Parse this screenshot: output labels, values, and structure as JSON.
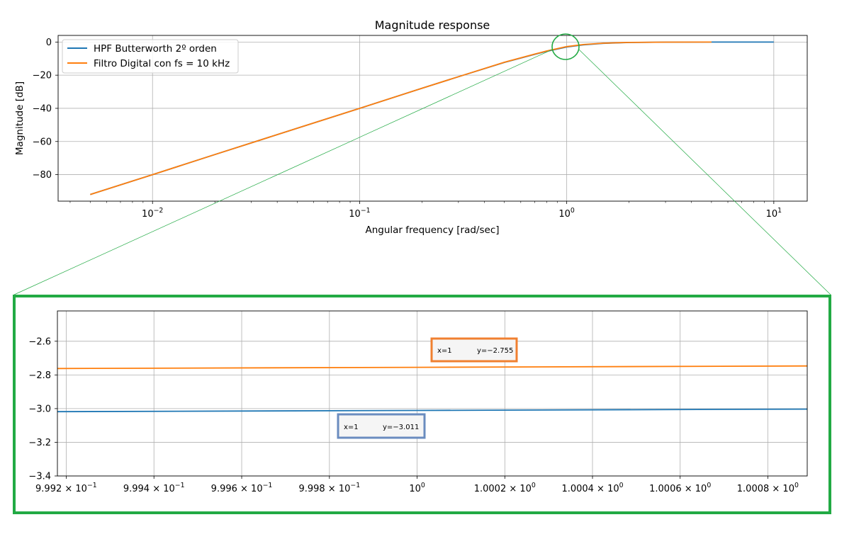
{
  "chart_data": [
    {
      "type": "line",
      "title": "Magnitude response",
      "xlabel": "Angular frequency [rad/sec]",
      "ylabel": "Magnitude [dB]",
      "xscale": "log",
      "xlim": [
        0.0035,
        14.5
      ],
      "ylim": [
        -96,
        4
      ],
      "grid": true,
      "legend_position": "upper-left",
      "yticks": [
        0,
        -20,
        -40,
        -60,
        -80
      ],
      "ytick_labels": [
        "0",
        "−20",
        "−40",
        "−60",
        "−80"
      ],
      "xticks": [
        0.01,
        0.1,
        1,
        10
      ],
      "xtick_labels": [
        {
          "base": "10",
          "exp": "−2"
        },
        {
          "base": "10",
          "exp": "−1"
        },
        {
          "base": "10",
          "exp": "0"
        },
        {
          "base": "10",
          "exp": "1"
        }
      ],
      "series": [
        {
          "name": "HPF Butterworth 2º orden",
          "color": "#1f77b4",
          "x": [
            0.005,
            0.01,
            0.02,
            0.05,
            0.1,
            0.2,
            0.3,
            0.5,
            0.7,
            0.8,
            1.0,
            1.2,
            1.5,
            2.0,
            3.0,
            5.0,
            10.0
          ],
          "y": [
            -92.0,
            -80.0,
            -67.9,
            -52.0,
            -40.0,
            -27.9,
            -20.9,
            -12.3,
            -7.4,
            -5.6,
            -3.01,
            -1.7,
            -0.8,
            -0.26,
            -0.05,
            -0.01,
            0.0
          ]
        },
        {
          "name": "Filtro Digital con fs = 10 kHz",
          "color": "#ff7f0e",
          "x": [
            0.005,
            0.01,
            0.02,
            0.05,
            0.1,
            0.2,
            0.3,
            0.5,
            0.7,
            0.8,
            1.0,
            1.2,
            1.5,
            2.0,
            3.0,
            5.0
          ],
          "y": [
            -92.0,
            -80.0,
            -67.9,
            -52.0,
            -40.0,
            -27.9,
            -20.9,
            -12.2,
            -7.3,
            -5.4,
            -2.76,
            -1.5,
            -0.7,
            -0.22,
            -0.04,
            -0.01
          ]
        }
      ]
    },
    {
      "type": "line",
      "title": "",
      "xlabel": "",
      "ylabel": "",
      "xscale": "log",
      "xlim": [
        0.99918,
        1.00089
      ],
      "ylim": [
        -3.4,
        -2.42
      ],
      "grid": true,
      "yticks": [
        -2.6,
        -2.8,
        -3.0,
        -3.2,
        -3.4
      ],
      "ytick_labels": [
        "−2.6",
        "−2.8",
        "−3.0",
        "−3.2",
        "−3.4"
      ],
      "xticks": [
        0.9992,
        0.9994,
        0.9996,
        0.9998,
        1.0,
        1.0002,
        1.0004,
        1.0006,
        1.0008
      ],
      "xtick_labels": [
        {
          "base": "9.992 × 10",
          "exp": "−1"
        },
        {
          "base": "9.994 × 10",
          "exp": "−1"
        },
        {
          "base": "9.996 × 10",
          "exp": "−1"
        },
        {
          "base": "9.998 × 10",
          "exp": "−1"
        },
        {
          "base": "10",
          "exp": "0"
        },
        {
          "base": "1.0002 × 10",
          "exp": "0"
        },
        {
          "base": "1.0004 × 10",
          "exp": "0"
        },
        {
          "base": "1.0006 × 10",
          "exp": "0"
        },
        {
          "base": "1.0008 × 10",
          "exp": "0"
        }
      ],
      "series": [
        {
          "name": "HPF Butterworth 2º orden",
          "color": "#1f77b4",
          "x": [
            0.99918,
            1.0,
            1.00089
          ],
          "y": [
            -3.018,
            -3.011,
            -3.003
          ]
        },
        {
          "name": "Filtro Digital con fs = 10 kHz",
          "color": "#ff7f0e",
          "x": [
            0.99918,
            1.0,
            1.00089
          ],
          "y": [
            -2.762,
            -2.755,
            -2.747
          ]
        }
      ],
      "annotations": [
        {
          "x_label": "x=1",
          "y_label": "y=−2.755",
          "border_color": "#f08030"
        },
        {
          "x_label": "x=1",
          "y_label": "y=−3.011",
          "border_color": "#6a8cbf"
        }
      ]
    }
  ],
  "colors": {
    "zoom_highlight": "#22aa44",
    "grid": "#b0b0b0"
  }
}
